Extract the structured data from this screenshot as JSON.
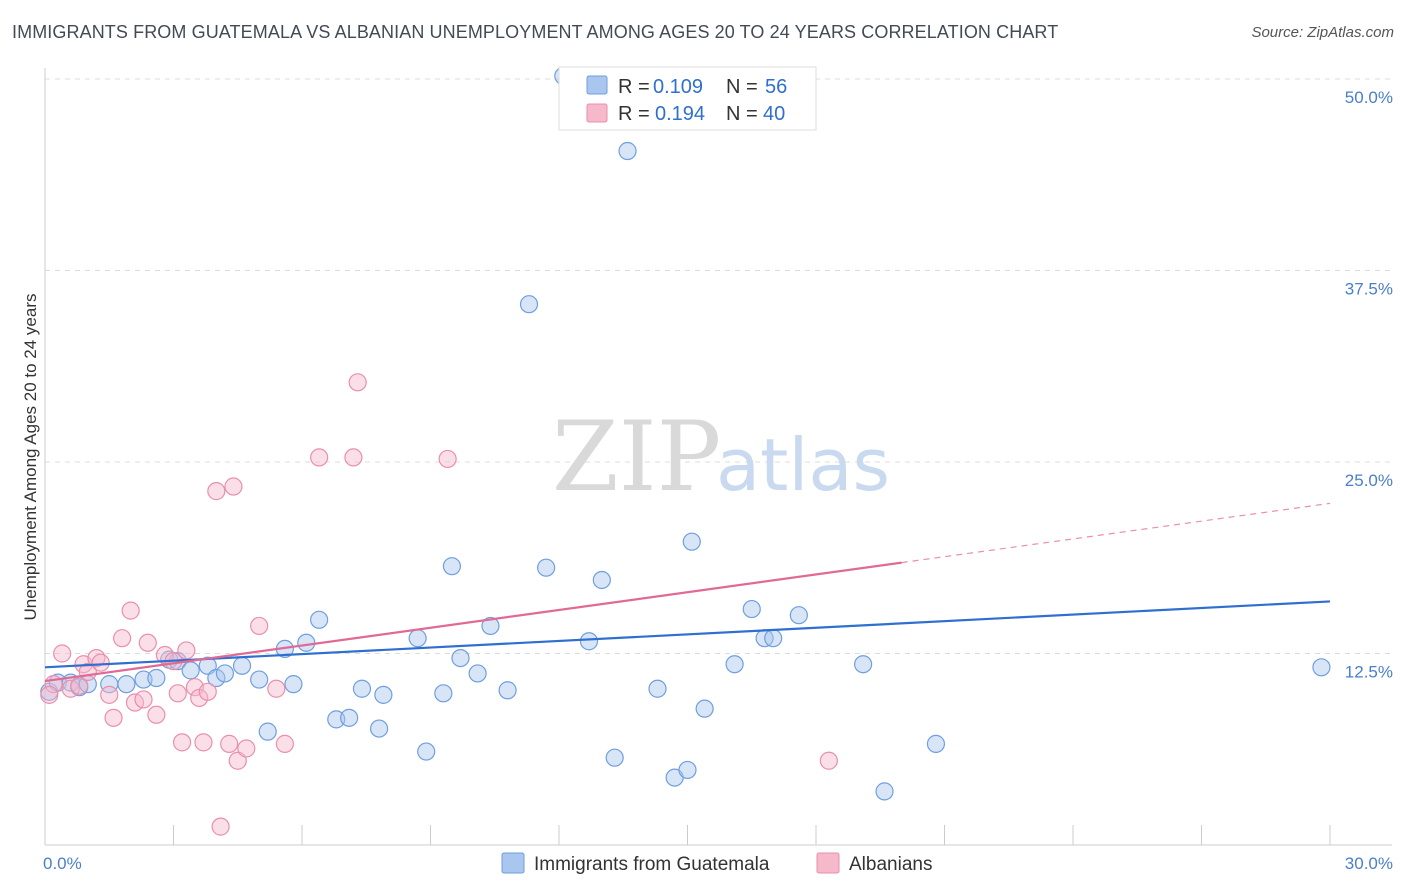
{
  "header": {
    "title": "IMMIGRANTS FROM GUATEMALA VS ALBANIAN UNEMPLOYMENT AMONG AGES 20 TO 24 YEARS CORRELATION CHART",
    "source": "Source: ZipAtlas.com"
  },
  "watermark": {
    "zip": "ZIP",
    "atlas": "atlas"
  },
  "legend": {
    "rows": [
      {
        "r_label": "R = ",
        "r_value": "0.109",
        "n_label": "N = ",
        "n_value": "56",
        "color": "#a9c6ee"
      },
      {
        "r_label": "R = ",
        "r_value": "0.194",
        "n_label": "N = ",
        "n_value": "40",
        "color": "#f6b8cb"
      }
    ]
  },
  "bottom_legend": {
    "items": [
      {
        "label": "Immigrants from Guatemala",
        "color": "#a9c6ee"
      },
      {
        "label": "Albanians",
        "color": "#f6b8cb"
      }
    ]
  },
  "chart_data": {
    "type": "scatter",
    "title": "IMMIGRANTS FROM GUATEMALA VS ALBANIAN UNEMPLOYMENT AMONG AGES 20 TO 24 YEARS CORRELATION CHART",
    "xlabel": "",
    "ylabel": "Unemployment Among Ages 20 to 24 years",
    "xlim": [
      0,
      30
    ],
    "ylim": [
      0,
      50
    ],
    "x_tick_labels": [
      "0.0%",
      "30.0%"
    ],
    "y_ticks": [
      12.5,
      25.0,
      37.5,
      50.0
    ],
    "y_tick_labels": [
      "12.5%",
      "25.0%",
      "37.5%",
      "50.0%"
    ],
    "grid": true,
    "series": [
      {
        "name": "Immigrants from Guatemala",
        "color": "#6f9fde",
        "fill": "#a9c6ee",
        "trend": {
          "x0": 0,
          "y0": 11.6,
          "x1": 30,
          "y1": 15.9
        },
        "points": [
          [
            0.1,
            10.0
          ],
          [
            0.3,
            10.6
          ],
          [
            0.6,
            10.6
          ],
          [
            0.8,
            10.3
          ],
          [
            1.0,
            10.5
          ],
          [
            1.5,
            10.5
          ],
          [
            1.9,
            10.5
          ],
          [
            2.3,
            10.8
          ],
          [
            2.6,
            10.9
          ],
          [
            2.9,
            12.1
          ],
          [
            3.1,
            12.0
          ],
          [
            3.4,
            11.4
          ],
          [
            3.8,
            11.7
          ],
          [
            4.0,
            10.9
          ],
          [
            4.2,
            11.2
          ],
          [
            4.6,
            11.7
          ],
          [
            5.0,
            10.8
          ],
          [
            5.2,
            7.4
          ],
          [
            5.6,
            12.8
          ],
          [
            5.8,
            10.5
          ],
          [
            6.1,
            13.2
          ],
          [
            6.4,
            14.7
          ],
          [
            6.8,
            8.2
          ],
          [
            7.1,
            8.3
          ],
          [
            7.4,
            10.2
          ],
          [
            7.8,
            7.6
          ],
          [
            7.9,
            9.8
          ],
          [
            8.7,
            13.5
          ],
          [
            8.9,
            6.1
          ],
          [
            9.3,
            9.9
          ],
          [
            9.5,
            18.2
          ],
          [
            9.7,
            12.2
          ],
          [
            10.1,
            11.2
          ],
          [
            10.4,
            14.3
          ],
          [
            10.8,
            10.1
          ],
          [
            11.3,
            35.3
          ],
          [
            11.7,
            18.1
          ],
          [
            12.1,
            50.2
          ],
          [
            12.7,
            13.3
          ],
          [
            13.0,
            17.3
          ],
          [
            13.3,
            5.7
          ],
          [
            13.6,
            45.3
          ],
          [
            14.3,
            10.2
          ],
          [
            14.7,
            4.4
          ],
          [
            15.0,
            4.9
          ],
          [
            15.1,
            19.8
          ],
          [
            15.4,
            8.9
          ],
          [
            16.1,
            11.8
          ],
          [
            16.5,
            15.4
          ],
          [
            16.8,
            13.5
          ],
          [
            17.0,
            13.5
          ],
          [
            17.6,
            15.0
          ],
          [
            19.1,
            11.8
          ],
          [
            19.6,
            3.5
          ],
          [
            20.8,
            6.6
          ],
          [
            29.8,
            11.6
          ]
        ]
      },
      {
        "name": "Albanians",
        "color": "#e98fac",
        "fill": "#f6b8cb",
        "trend": {
          "x0": 0,
          "y0": 10.7,
          "x1": 30,
          "y1": 22.3,
          "solid_until": 20
        },
        "points": [
          [
            0.2,
            10.5
          ],
          [
            0.4,
            12.5
          ],
          [
            0.6,
            10.2
          ],
          [
            0.8,
            10.4
          ],
          [
            0.9,
            11.8
          ],
          [
            1.0,
            11.3
          ],
          [
            1.2,
            12.2
          ],
          [
            1.3,
            11.9
          ],
          [
            1.5,
            9.8
          ],
          [
            1.6,
            8.3
          ],
          [
            1.8,
            13.5
          ],
          [
            2.0,
            15.3
          ],
          [
            2.1,
            9.3
          ],
          [
            2.3,
            9.5
          ],
          [
            2.4,
            13.2
          ],
          [
            2.6,
            8.5
          ],
          [
            2.8,
            12.4
          ],
          [
            3.0,
            12.0
          ],
          [
            3.1,
            9.9
          ],
          [
            3.2,
            6.7
          ],
          [
            3.3,
            12.7
          ],
          [
            3.5,
            10.3
          ],
          [
            3.6,
            9.6
          ],
          [
            3.7,
            6.7
          ],
          [
            3.8,
            10.0
          ],
          [
            4.0,
            23.1
          ],
          [
            4.1,
            1.2
          ],
          [
            4.3,
            6.6
          ],
          [
            4.4,
            23.4
          ],
          [
            4.5,
            5.5
          ],
          [
            4.7,
            6.3
          ],
          [
            5.0,
            14.3
          ],
          [
            5.4,
            10.2
          ],
          [
            5.6,
            6.6
          ],
          [
            6.4,
            25.3
          ],
          [
            7.3,
            30.2
          ],
          [
            7.2,
            25.3
          ],
          [
            9.4,
            25.2
          ],
          [
            18.3,
            5.5
          ],
          [
            0.1,
            9.8
          ]
        ]
      }
    ]
  }
}
